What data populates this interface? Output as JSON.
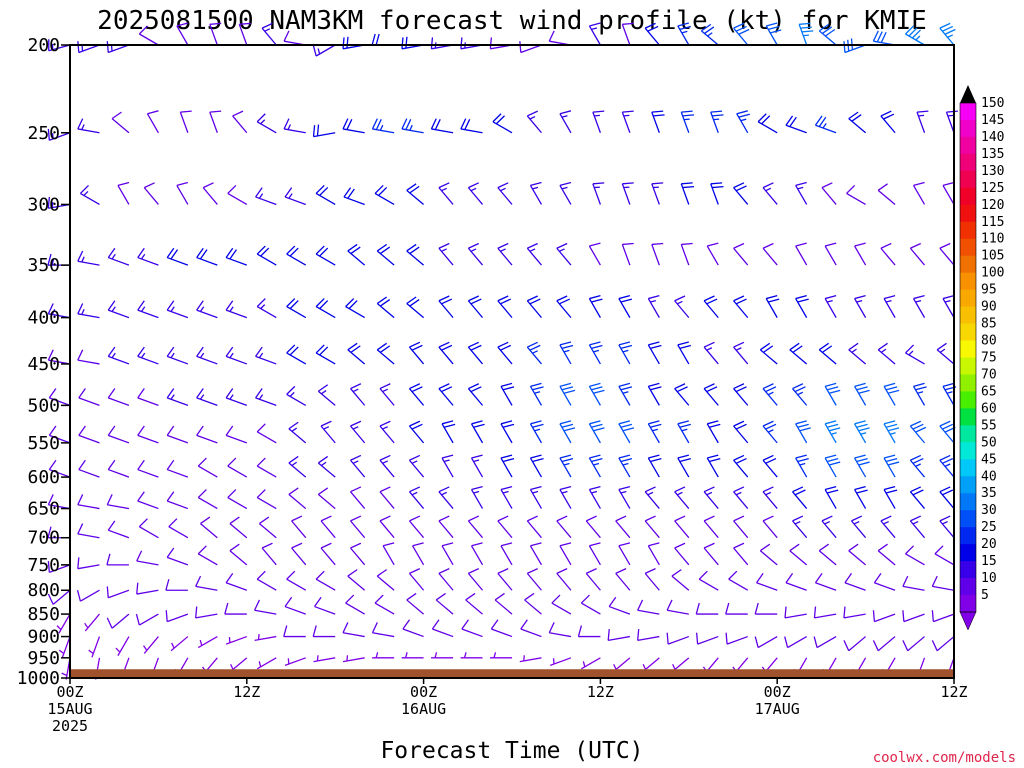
{
  "chart_data": {
    "type": "wind-barb-time-height",
    "title": "2025081500 NAM3KM forecast wind profile (kt) for KMIE",
    "xlabel": "Forecast Time (UTC)",
    "credit": "coolwx.com/models",
    "y_axis": {
      "log_scale": true,
      "reversed": true,
      "range": [
        1000,
        200
      ],
      "ticks": [
        "200",
        "250",
        "300",
        "350",
        "400",
        "450",
        "500",
        "550",
        "600",
        "650",
        "700",
        "750",
        "800",
        "850",
        "900",
        "950",
        "1000"
      ]
    },
    "x_axis": {
      "range_hours": [
        0,
        60
      ],
      "ticks": [
        {
          "hour": 0,
          "lines": [
            "00Z",
            "15AUG",
            "2025"
          ]
        },
        {
          "hour": 12,
          "lines": [
            "12Z"
          ]
        },
        {
          "hour": 24,
          "lines": [
            "00Z",
            "16AUG"
          ]
        },
        {
          "hour": 36,
          "lines": [
            "12Z"
          ]
        },
        {
          "hour": 48,
          "lines": [
            "00Z",
            "17AUG"
          ]
        },
        {
          "hour": 60,
          "lines": [
            "12Z"
          ]
        }
      ]
    },
    "ground": {
      "color": "#a0522d",
      "surface_hpa": 978
    },
    "colorbar": {
      "labels": [
        "150",
        "145",
        "140",
        "135",
        "130",
        "125",
        "120",
        "115",
        "110",
        "105",
        "100",
        "95",
        "90",
        "85",
        "80",
        "75",
        "70",
        "65",
        "60",
        "55",
        "50",
        "45",
        "40",
        "35",
        "30",
        "25",
        "20",
        "15",
        "10",
        "5"
      ],
      "colors": [
        "#f800f8",
        "#f000c8",
        "#f000a0",
        "#f00078",
        "#f00050",
        "#f00028",
        "#f01010",
        "#f03000",
        "#f05000",
        "#f07000",
        "#f89000",
        "#f8a800",
        "#f8c000",
        "#f8d800",
        "#f8f800",
        "#c8f800",
        "#90f000",
        "#48f000",
        "#00e040",
        "#00e8a0",
        "#00e8d8",
        "#00c8f8",
        "#00a0f8",
        "#0078f8",
        "#0050f8",
        "#0028f0",
        "#0000e8",
        "#3800e8",
        "#6000e8",
        "#8000e8"
      ],
      "max_color": "#000000"
    },
    "barb_hours": [
      0,
      2,
      4,
      6,
      8,
      10,
      12,
      14,
      16,
      18,
      20,
      22,
      24,
      26,
      28,
      30,
      32,
      34,
      36,
      38,
      40,
      42,
      44,
      46,
      48,
      50,
      52,
      54,
      56,
      58,
      60
    ],
    "levels_hpa": [
      200,
      250,
      300,
      350,
      400,
      450,
      500,
      550,
      600,
      650,
      700,
      750,
      800,
      850,
      900,
      950
    ],
    "wind_barbs": [
      {
        "level": 200,
        "dir": [
          255,
          250,
          250,
          300,
          330,
          340,
          340,
          320,
          280,
          240,
          260,
          270,
          260,
          260,
          260,
          260,
          250,
          280,
          330,
          340,
          320,
          330,
          310,
          320,
          330,
          340,
          310,
          250,
          280,
          300,
          320
        ],
        "spd": [
          15,
          15,
          15,
          10,
          10,
          10,
          10,
          15,
          10,
          15,
          20,
          20,
          20,
          15,
          15,
          10,
          10,
          10,
          15,
          10,
          20,
          25,
          25,
          30,
          30,
          35,
          30,
          30,
          30,
          35,
          35
        ]
      },
      {
        "level": 250,
        "dir": [
          250,
          280,
          310,
          330,
          340,
          340,
          320,
          300,
          280,
          260,
          280,
          280,
          280,
          280,
          280,
          300,
          320,
          330,
          340,
          340,
          340,
          340,
          340,
          330,
          300,
          290,
          290,
          310,
          320,
          340,
          340
        ],
        "spd": [
          15,
          15,
          10,
          10,
          10,
          10,
          10,
          15,
          15,
          20,
          20,
          25,
          25,
          20,
          20,
          20,
          15,
          15,
          15,
          15,
          20,
          25,
          25,
          25,
          20,
          20,
          25,
          20,
          20,
          15,
          15
        ]
      },
      {
        "level": 300,
        "dir": [
          260,
          300,
          330,
          320,
          330,
          320,
          300,
          290,
          290,
          300,
          290,
          300,
          310,
          320,
          320,
          320,
          330,
          330,
          340,
          340,
          340,
          340,
          340,
          320,
          320,
          330,
          320,
          300,
          310,
          330,
          330
        ],
        "spd": [
          15,
          15,
          10,
          10,
          10,
          10,
          10,
          15,
          15,
          20,
          20,
          20,
          20,
          15,
          15,
          15,
          15,
          15,
          15,
          15,
          15,
          20,
          20,
          20,
          15,
          15,
          10,
          10,
          10,
          10,
          10
        ]
      },
      {
        "level": 350,
        "dir": [
          270,
          280,
          290,
          290,
          290,
          290,
          290,
          300,
          300,
          300,
          310,
          310,
          310,
          320,
          320,
          320,
          320,
          320,
          330,
          340,
          340,
          340,
          330,
          320,
          320,
          330,
          330,
          330,
          320,
          320,
          320
        ],
        "spd": [
          15,
          15,
          15,
          15,
          20,
          20,
          20,
          20,
          20,
          20,
          20,
          20,
          20,
          15,
          15,
          15,
          15,
          15,
          10,
          10,
          10,
          10,
          10,
          10,
          10,
          10,
          10,
          10,
          10,
          10,
          10
        ]
      },
      {
        "level": 400,
        "dir": [
          280,
          280,
          290,
          290,
          290,
          290,
          290,
          300,
          300,
          300,
          300,
          310,
          310,
          320,
          320,
          320,
          320,
          320,
          330,
          330,
          330,
          320,
          320,
          320,
          330,
          330,
          330,
          330,
          330,
          330,
          330
        ],
        "spd": [
          15,
          15,
          15,
          15,
          15,
          15,
          15,
          15,
          20,
          20,
          20,
          20,
          20,
          20,
          20,
          20,
          20,
          20,
          20,
          20,
          15,
          15,
          20,
          20,
          20,
          20,
          15,
          15,
          15,
          15,
          15
        ]
      },
      {
        "level": 450,
        "dir": [
          280,
          280,
          290,
          290,
          290,
          290,
          290,
          290,
          300,
          300,
          310,
          310,
          320,
          320,
          320,
          320,
          320,
          330,
          330,
          330,
          330,
          330,
          320,
          320,
          310,
          310,
          310,
          310,
          310,
          300,
          310
        ],
        "spd": [
          10,
          10,
          15,
          15,
          15,
          15,
          15,
          15,
          20,
          20,
          20,
          20,
          20,
          20,
          20,
          20,
          25,
          25,
          25,
          25,
          20,
          20,
          15,
          15,
          20,
          20,
          20,
          15,
          15,
          15,
          15
        ]
      },
      {
        "level": 500,
        "dir": [
          290,
          290,
          290,
          290,
          290,
          290,
          290,
          290,
          300,
          310,
          320,
          320,
          320,
          320,
          320,
          330,
          330,
          330,
          330,
          330,
          330,
          320,
          320,
          320,
          320,
          320,
          330,
          330,
          330,
          330,
          330
        ],
        "spd": [
          10,
          10,
          10,
          10,
          15,
          15,
          15,
          15,
          15,
          15,
          15,
          15,
          20,
          20,
          20,
          20,
          25,
          30,
          30,
          25,
          20,
          20,
          20,
          20,
          25,
          25,
          30,
          30,
          30,
          25,
          25
        ]
      },
      {
        "level": 550,
        "dir": [
          290,
          290,
          290,
          290,
          290,
          290,
          290,
          300,
          310,
          320,
          320,
          320,
          320,
          330,
          330,
          330,
          330,
          330,
          330,
          330,
          330,
          330,
          330,
          320,
          320,
          330,
          330,
          330,
          330,
          320,
          320
        ],
        "spd": [
          10,
          10,
          10,
          10,
          10,
          10,
          10,
          10,
          15,
          15,
          15,
          15,
          20,
          20,
          20,
          20,
          25,
          30,
          30,
          30,
          25,
          25,
          20,
          20,
          25,
          30,
          35,
          35,
          35,
          30,
          30
        ]
      },
      {
        "level": 600,
        "dir": [
          290,
          290,
          290,
          290,
          290,
          300,
          300,
          300,
          310,
          310,
          320,
          320,
          320,
          330,
          330,
          330,
          330,
          330,
          330,
          330,
          330,
          330,
          330,
          320,
          320,
          330,
          330,
          330,
          330,
          320,
          320
        ],
        "spd": [
          10,
          10,
          10,
          10,
          10,
          10,
          10,
          10,
          15,
          15,
          15,
          15,
          15,
          15,
          15,
          20,
          20,
          25,
          25,
          25,
          20,
          20,
          20,
          20,
          20,
          25,
          30,
          30,
          30,
          25,
          25
        ]
      },
      {
        "level": 650,
        "dir": [
          280,
          280,
          280,
          290,
          290,
          300,
          300,
          300,
          310,
          310,
          320,
          320,
          320,
          320,
          330,
          330,
          330,
          330,
          330,
          330,
          320,
          320,
          320,
          320,
          320,
          320,
          330,
          330,
          330,
          320,
          320
        ],
        "spd": [
          10,
          10,
          10,
          10,
          10,
          10,
          10,
          10,
          10,
          10,
          10,
          10,
          15,
          15,
          15,
          15,
          15,
          15,
          15,
          15,
          15,
          15,
          15,
          15,
          15,
          20,
          20,
          20,
          20,
          20,
          20
        ]
      },
      {
        "level": 700,
        "dir": [
          270,
          280,
          290,
          300,
          300,
          310,
          310,
          310,
          320,
          320,
          320,
          320,
          320,
          320,
          320,
          320,
          320,
          320,
          320,
          320,
          320,
          320,
          320,
          320,
          320,
          320,
          320,
          320,
          320,
          320,
          320
        ],
        "spd": [
          10,
          10,
          10,
          10,
          10,
          10,
          10,
          10,
          10,
          10,
          10,
          10,
          10,
          10,
          10,
          10,
          10,
          10,
          10,
          10,
          10,
          10,
          10,
          10,
          10,
          15,
          15,
          15,
          15,
          15,
          15
        ]
      },
      {
        "level": 750,
        "dir": [
          250,
          260,
          270,
          280,
          290,
          300,
          310,
          320,
          320,
          320,
          320,
          330,
          330,
          330,
          330,
          330,
          330,
          330,
          330,
          330,
          330,
          320,
          320,
          320,
          310,
          310,
          310,
          310,
          310,
          300,
          300
        ],
        "spd": [
          10,
          10,
          10,
          10,
          10,
          10,
          10,
          10,
          10,
          10,
          10,
          10,
          10,
          10,
          10,
          10,
          10,
          10,
          10,
          10,
          10,
          10,
          10,
          10,
          10,
          10,
          10,
          10,
          10,
          10,
          10
        ]
      },
      {
        "level": 800,
        "dir": [
          230,
          240,
          250,
          260,
          270,
          280,
          290,
          300,
          300,
          300,
          310,
          310,
          320,
          320,
          320,
          320,
          320,
          320,
          320,
          320,
          320,
          310,
          300,
          300,
          290,
          290,
          290,
          290,
          290,
          280,
          280
        ],
        "spd": [
          10,
          10,
          10,
          10,
          10,
          10,
          10,
          10,
          10,
          10,
          10,
          10,
          10,
          10,
          10,
          10,
          10,
          10,
          10,
          10,
          10,
          10,
          10,
          10,
          10,
          10,
          10,
          10,
          10,
          10,
          10
        ]
      },
      {
        "level": 850,
        "dir": [
          210,
          220,
          230,
          240,
          250,
          260,
          270,
          280,
          290,
          290,
          300,
          300,
          310,
          310,
          310,
          310,
          310,
          300,
          300,
          290,
          280,
          280,
          270,
          270,
          270,
          260,
          260,
          260,
          250,
          250,
          250
        ],
        "spd": [
          5,
          5,
          10,
          10,
          10,
          10,
          10,
          10,
          10,
          10,
          10,
          10,
          10,
          10,
          10,
          10,
          10,
          10,
          10,
          10,
          10,
          10,
          10,
          10,
          10,
          10,
          10,
          10,
          10,
          10,
          10
        ]
      },
      {
        "level": 900,
        "dir": [
          200,
          200,
          210,
          220,
          230,
          240,
          250,
          260,
          270,
          270,
          280,
          280,
          290,
          290,
          290,
          290,
          290,
          280,
          270,
          260,
          260,
          250,
          250,
          250,
          240,
          240,
          240,
          230,
          230,
          230,
          230
        ],
        "spd": [
          5,
          5,
          5,
          5,
          5,
          5,
          5,
          5,
          10,
          10,
          10,
          10,
          10,
          10,
          10,
          10,
          10,
          10,
          10,
          10,
          10,
          10,
          10,
          10,
          10,
          10,
          10,
          10,
          10,
          10,
          10
        ]
      },
      {
        "level": 950,
        "dir": [
          190,
          190,
          200,
          200,
          210,
          220,
          230,
          240,
          250,
          260,
          260,
          270,
          270,
          270,
          270,
          270,
          260,
          250,
          240,
          230,
          230,
          230,
          220,
          220,
          220,
          210,
          210,
          210,
          210,
          200,
          200
        ],
        "spd": [
          5,
          5,
          5,
          5,
          5,
          5,
          5,
          5,
          5,
          5,
          5,
          5,
          5,
          5,
          5,
          5,
          5,
          5,
          5,
          5,
          5,
          5,
          5,
          5,
          5,
          5,
          5,
          5,
          5,
          5,
          5
        ]
      }
    ]
  }
}
